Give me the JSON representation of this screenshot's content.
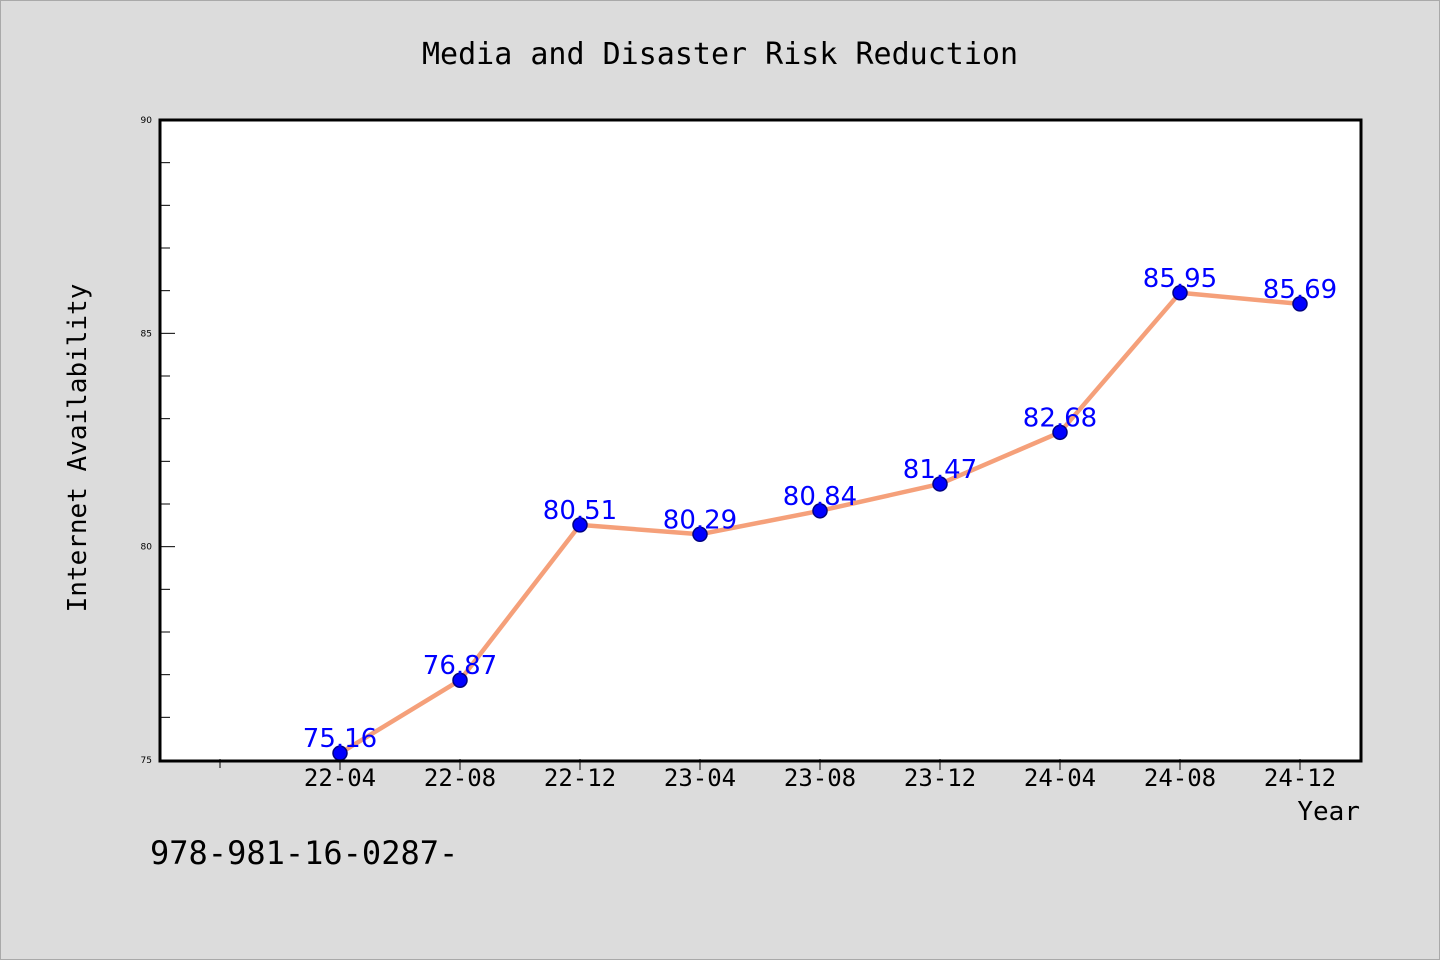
{
  "chart_data": {
    "type": "line",
    "title": "Media and Disaster Risk Reduction",
    "xlabel": "Year",
    "ylabel": "Internet Availability",
    "categories": [
      "22-04",
      "22-08",
      "22-12",
      "23-04",
      "23-08",
      "23-12",
      "24-04",
      "24-08",
      "24-12"
    ],
    "series": [
      {
        "values": [
          75.16,
          76.87,
          80.51,
          80.29,
          80.84,
          81.47,
          82.68,
          85.95,
          85.69
        ]
      }
    ],
    "value_labels": [
      "75.16",
      "76.87",
      "80.51",
      "80.29",
      "80.84",
      "81.47",
      "82.68",
      "85.95",
      "85.69"
    ],
    "ylim": [
      75,
      90
    ],
    "y_ticks": [
      "75",
      "80",
      "85",
      "90"
    ],
    "grid": false,
    "legend": "none",
    "colors": {
      "line": "#f5a07a",
      "marker": "#0000ff",
      "marker_edge": "#000080",
      "value_label": "#0000ff",
      "background": "#dcdcdc",
      "plot_background": "#ffffff"
    }
  },
  "footer_note": "978-981-16-0287-"
}
